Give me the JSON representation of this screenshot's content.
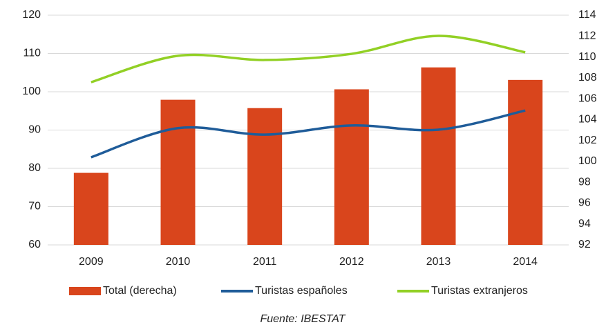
{
  "chart_data": {
    "type": "bar-line",
    "categories": [
      "2009",
      "2010",
      "2011",
      "2012",
      "2013",
      "2014"
    ],
    "series": [
      {
        "name": "Total (derecha)",
        "type": "bar",
        "axis": "y2",
        "color": "#d9451c",
        "values": [
          98.9,
          105.9,
          105.1,
          106.9,
          109.0,
          107.8
        ]
      },
      {
        "name": "Turistas españoles",
        "type": "line",
        "axis": "y",
        "color": "#1f5c99",
        "smooth": true,
        "values": [
          82.9,
          90.5,
          88.8,
          91.2,
          90.1,
          95.1
        ]
      },
      {
        "name": "Turistas extranjeros",
        "type": "line",
        "axis": "y",
        "color": "#92d025",
        "smooth": true,
        "values": [
          102.5,
          109.4,
          108.3,
          109.9,
          114.6,
          110.3
        ]
      }
    ],
    "ylim": [
      60,
      120
    ],
    "yticks": [
      60,
      70,
      80,
      90,
      100,
      110,
      120
    ],
    "y2lim": [
      92,
      114
    ],
    "y2ticks": [
      92,
      94,
      96,
      98,
      100,
      102,
      104,
      106,
      108,
      110,
      112,
      114
    ],
    "grid": true,
    "legend": "bottom",
    "source": "Fuente: IBESTAT"
  }
}
